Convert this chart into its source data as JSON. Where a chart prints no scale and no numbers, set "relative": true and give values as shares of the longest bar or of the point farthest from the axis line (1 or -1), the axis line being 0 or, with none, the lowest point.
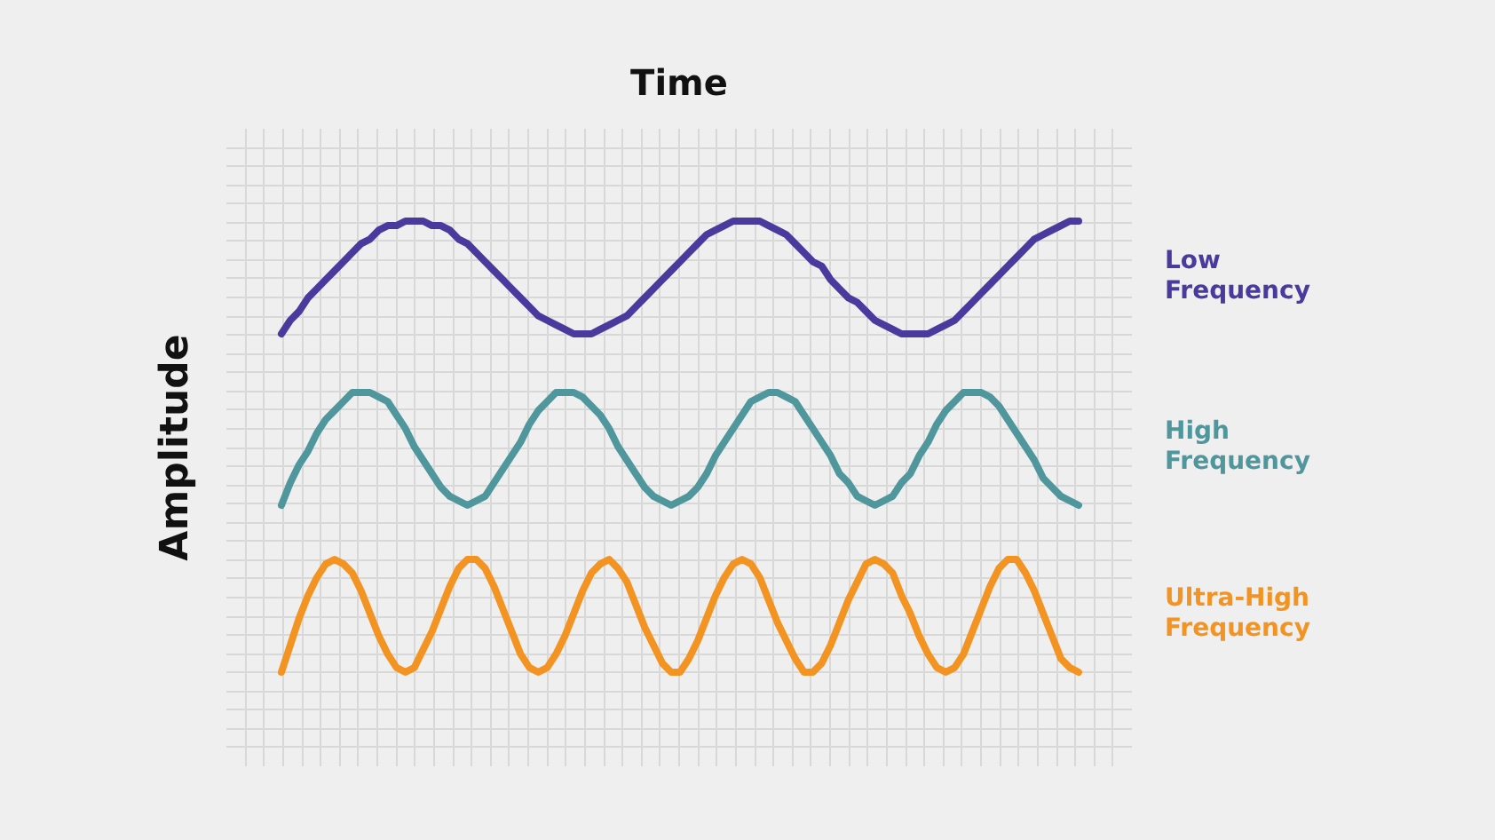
{
  "chart_data": {
    "type": "line",
    "xlabel": "Time",
    "ylabel": "Amplitude",
    "relative": true,
    "grid": true,
    "line_style": "solid",
    "categories": [
      null,
      null,
      null,
      null,
      null,
      null,
      null,
      null,
      null,
      null,
      null,
      null,
      null,
      null,
      null,
      null,
      null,
      null,
      null,
      null,
      null,
      null,
      null,
      null,
      null,
      null,
      null,
      null,
      null,
      null,
      null,
      null,
      null,
      null,
      null,
      null,
      null,
      null,
      null,
      null,
      null,
      null,
      null,
      null,
      null,
      null,
      null,
      null,
      null,
      null,
      null,
      null,
      null,
      null,
      null,
      null,
      null,
      null,
      null,
      null,
      null,
      null,
      null,
      null,
      null,
      null,
      null,
      null,
      null,
      null,
      null,
      null,
      null,
      null,
      null,
      null,
      null,
      null,
      null,
      null,
      null,
      null,
      null,
      null,
      null,
      null,
      null,
      null,
      null,
      null,
      null
    ],
    "series": [
      {
        "name": "Low Frequency",
        "color": "#4a3a9d",
        "values": [
          0.75,
          0.78,
          0.8,
          0.83,
          0.85,
          0.87,
          0.89,
          0.91,
          0.93,
          0.95,
          0.96,
          0.98,
          0.99,
          0.99,
          1.0,
          1.0,
          1.0,
          0.99,
          0.99,
          0.98,
          0.96,
          0.95,
          0.93,
          0.91,
          0.89,
          0.87,
          0.85,
          0.83,
          0.81,
          0.79,
          0.78,
          0.77,
          0.76,
          0.75,
          0.75,
          0.75,
          0.76,
          0.77,
          0.78,
          0.79,
          0.81,
          0.83,
          0.85,
          0.87,
          0.89,
          0.91,
          0.93,
          0.95,
          0.97,
          0.98,
          0.99,
          1.0,
          1.0,
          1.0,
          1.0,
          0.99,
          0.98,
          0.97,
          0.95,
          0.93,
          0.91,
          0.9,
          0.87,
          0.85,
          0.83,
          0.82,
          0.8,
          0.78,
          0.77,
          0.76,
          0.75,
          0.75,
          0.75,
          0.75,
          0.76,
          0.77,
          0.78,
          0.8,
          0.82,
          0.84,
          0.86,
          0.88,
          0.9,
          0.92,
          0.94,
          0.96,
          0.97,
          0.98,
          0.99,
          1.0,
          1.0
        ]
      },
      {
        "name": "High Frequency",
        "color": "#50979d",
        "values": [
          0.37,
          0.42,
          0.46,
          0.49,
          0.53,
          0.56,
          0.58,
          0.6,
          0.62,
          0.62,
          0.62,
          0.61,
          0.6,
          0.57,
          0.54,
          0.5,
          0.47,
          0.44,
          0.41,
          0.39,
          0.38,
          0.37,
          0.38,
          0.39,
          0.42,
          0.45,
          0.48,
          0.51,
          0.55,
          0.58,
          0.6,
          0.62,
          0.62,
          0.62,
          0.61,
          0.59,
          0.57,
          0.54,
          0.5,
          0.47,
          0.44,
          0.41,
          0.39,
          0.38,
          0.37,
          0.38,
          0.39,
          0.41,
          0.44,
          0.48,
          0.51,
          0.54,
          0.57,
          0.6,
          0.61,
          0.62,
          0.62,
          0.61,
          0.6,
          0.57,
          0.54,
          0.51,
          0.48,
          0.44,
          0.42,
          0.39,
          0.38,
          0.37,
          0.38,
          0.39,
          0.42,
          0.44,
          0.48,
          0.51,
          0.55,
          0.58,
          0.6,
          0.62,
          0.62,
          0.62,
          0.61,
          0.59,
          0.56,
          0.53,
          0.5,
          0.47,
          0.43,
          0.41,
          0.39,
          0.38,
          0.37
        ]
      },
      {
        "name": "Ultra-High Frequency",
        "color": "#f39322",
        "values": [
          0.0,
          0.06,
          0.12,
          0.17,
          0.21,
          0.24,
          0.25,
          0.24,
          0.22,
          0.18,
          0.13,
          0.08,
          0.04,
          0.01,
          0.0,
          0.01,
          0.05,
          0.09,
          0.14,
          0.19,
          0.23,
          0.25,
          0.25,
          0.23,
          0.19,
          0.14,
          0.09,
          0.04,
          0.01,
          0.0,
          0.01,
          0.04,
          0.08,
          0.13,
          0.18,
          0.22,
          0.24,
          0.25,
          0.23,
          0.2,
          0.15,
          0.1,
          0.06,
          0.02,
          0.0,
          0.0,
          0.03,
          0.07,
          0.12,
          0.17,
          0.21,
          0.24,
          0.25,
          0.24,
          0.21,
          0.16,
          0.11,
          0.07,
          0.03,
          0.0,
          0.0,
          0.02,
          0.06,
          0.11,
          0.16,
          0.2,
          0.24,
          0.25,
          0.24,
          0.22,
          0.17,
          0.13,
          0.08,
          0.04,
          0.01,
          0.0,
          0.01,
          0.04,
          0.09,
          0.14,
          0.19,
          0.23,
          0.25,
          0.25,
          0.22,
          0.18,
          0.13,
          0.08,
          0.03,
          0.01,
          0.0
        ]
      }
    ]
  }
}
